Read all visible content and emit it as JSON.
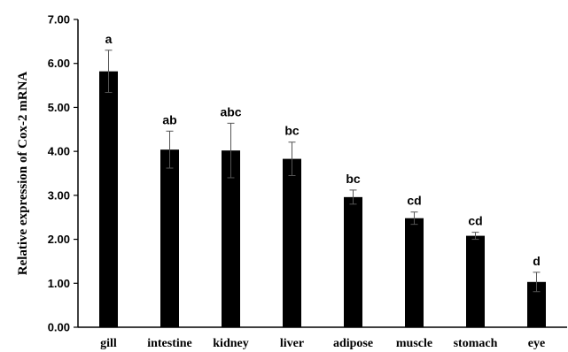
{
  "chart_data": {
    "type": "bar",
    "title": "",
    "xlabel": "",
    "ylabel": "Relative expression  of Cox-2 mRNA",
    "ylim": [
      0,
      7
    ],
    "yticks": [
      "0.00",
      "1.00",
      "2.00",
      "3.00",
      "4.00",
      "5.00",
      "6.00",
      "7.00"
    ],
    "ytick_values": [
      0,
      1,
      2,
      3,
      4,
      5,
      6,
      7
    ],
    "grid": false,
    "legend": "none",
    "bar_color": "#000000",
    "categories": [
      "gill",
      "intestine",
      "kidney",
      "liver",
      "adipose",
      "muscle",
      "stomach",
      "eye"
    ],
    "values": [
      5.82,
      4.04,
      4.02,
      3.83,
      2.96,
      2.48,
      2.08,
      1.03
    ],
    "errors": [
      0.48,
      0.42,
      0.62,
      0.38,
      0.16,
      0.14,
      0.08,
      0.22
    ],
    "significance": [
      "a",
      "ab",
      "abc",
      "bc",
      "bc",
      "cd",
      "cd",
      "d"
    ]
  }
}
